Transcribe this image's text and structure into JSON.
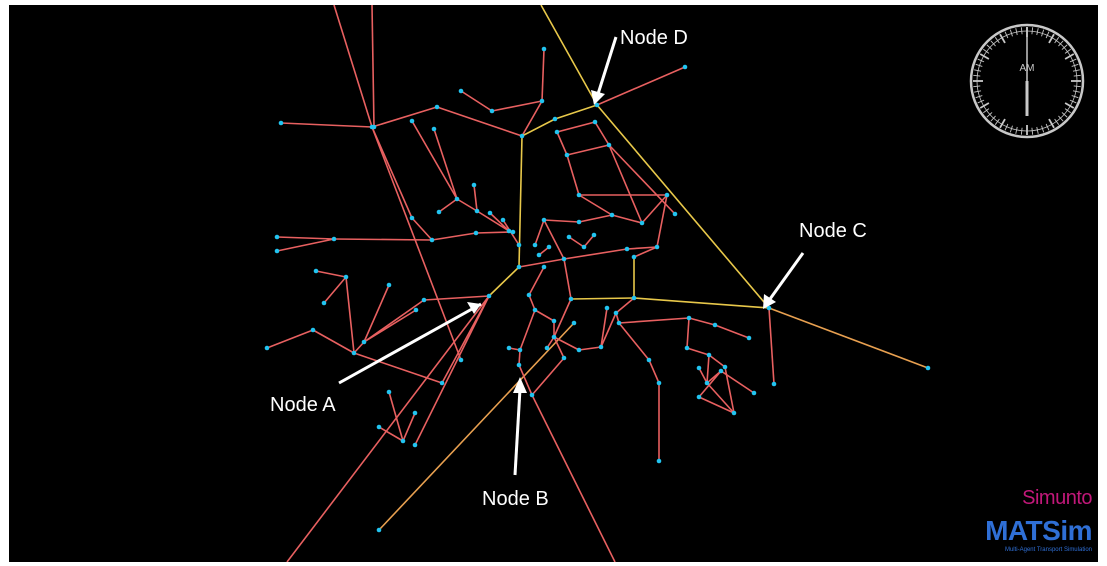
{
  "annotations": [
    {
      "id": "node-a",
      "label": "Node A"
    },
    {
      "id": "node-b",
      "label": "Node B"
    },
    {
      "id": "node-c",
      "label": "Node C"
    },
    {
      "id": "node-d",
      "label": "Node D"
    }
  ],
  "clock": {
    "period": "AM",
    "hour": 12,
    "minute": 0
  },
  "logos": {
    "simunto": "Simunto",
    "matsim": "MATSim",
    "matsim_subtitle": "Multi-Agent Transport Simulation"
  },
  "colors": {
    "background": "#000000",
    "link_default": "#e86060",
    "link_highlight": "#e8c84a",
    "link_orange": "#e8a050",
    "node": "#22c4f0",
    "annotation": "#ffffff",
    "clock": "#c8c8c8",
    "simunto": "#c2187a",
    "matsim": "#2f6fd6"
  }
}
